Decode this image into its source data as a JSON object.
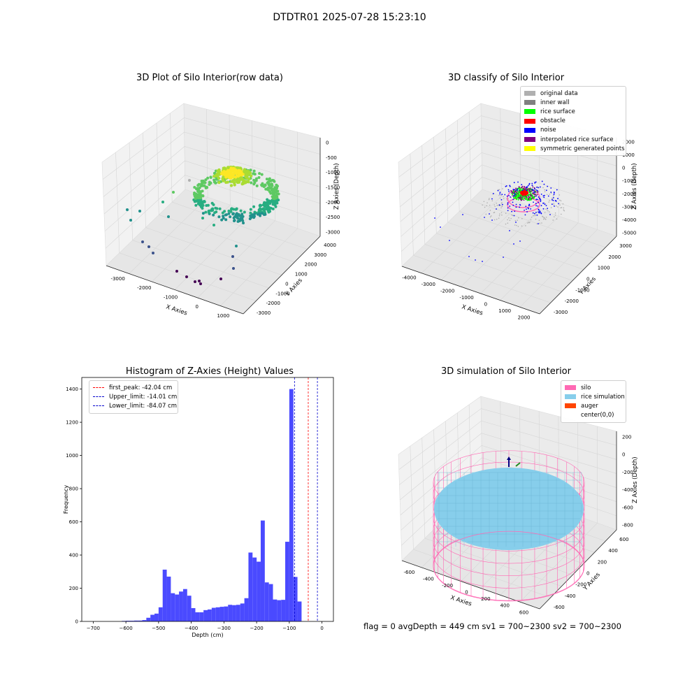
{
  "suptitle": "DTDTR01 2025-07-28 15:23:10",
  "status_text": "flag = 0     avgDepth = 449 cm  sv1 = 700~2300  sv2 = 700~2300",
  "colors": {
    "original": "#b0b0b0",
    "inner_wall": "#808080",
    "rice_surface": "#00ff00",
    "obstacle": "#ff0000",
    "noise": "#0000ff",
    "interpolated": "#800080",
    "symmetric": "#ffff00",
    "hist_bar": "#4a4aff",
    "silo": "#ff69b4",
    "rice_sim": "#87ceeb",
    "auger": "#ff4500"
  },
  "chart_data": [
    {
      "type": "scatter",
      "title": "3D Plot of Silo Interior(row data)",
      "xlabel": "X Axies",
      "ylabel": "Y Axies",
      "zlabel": "Z Axies (Depth)",
      "x_ticks": [
        "-3000",
        "-2000",
        "-1000",
        "0",
        "1000"
      ],
      "y_ticks": [
        "-3000",
        "-2000",
        "-1000",
        "0",
        "1000",
        "2000",
        "3000",
        "4000"
      ],
      "z_ticks": [
        "0",
        "-500",
        "-1000",
        "-1500",
        "-2000",
        "-2500",
        "-3000"
      ],
      "colormap": "viridis"
    },
    {
      "type": "scatter",
      "title": "3D classify of Silo Interior",
      "xlabel": "X Axies",
      "ylabel": "Y Axies",
      "zlabel": "Z Axies (Depth)",
      "x_ticks": [
        "-4000",
        "-3000",
        "-2000",
        "-1000",
        "0",
        "1000",
        "2000"
      ],
      "y_ticks": [
        "-3000",
        "-2000",
        "-1000",
        "0",
        "1000",
        "2000",
        "3000"
      ],
      "z_ticks": [
        "2000",
        "1000",
        "0",
        "-1000",
        "-2000",
        "-3000",
        "-4000",
        "-5000"
      ],
      "legend": [
        {
          "label": "original data",
          "color": "#b0b0b0"
        },
        {
          "label": "inner wall",
          "color": "#808080"
        },
        {
          "label": "rice surface",
          "color": "#00ff00"
        },
        {
          "label": "obstacle",
          "color": "#ff0000"
        },
        {
          "label": "noise",
          "color": "#0000ff"
        },
        {
          "label": "interpolated rice surface",
          "color": "#800080"
        },
        {
          "label": "symmetric generated points",
          "color": "#ffff00"
        }
      ]
    },
    {
      "type": "bar",
      "title": "Histogram of Z-Axies (Height) Values",
      "xlabel": "Depth (cm)",
      "ylabel": "Frequency",
      "xlim": [
        -735,
        35
      ],
      "ylim": [
        0,
        1470
      ],
      "x_ticks": [
        -700,
        -600,
        -500,
        -400,
        -300,
        -200,
        -100,
        0
      ],
      "y_ticks": [
        0,
        200,
        400,
        600,
        800,
        1000,
        1200,
        1400
      ],
      "bin_width": 12.5,
      "bin_starts": [
        -612.5,
        -600,
        -587.5,
        -575,
        -562.5,
        -550,
        -537.5,
        -525,
        -512.5,
        -500,
        -487.5,
        -475,
        -462.5,
        -450,
        -437.5,
        -425,
        -412.5,
        -400,
        -387.5,
        -375,
        -362.5,
        -350,
        -337.5,
        -325,
        -312.5,
        -300,
        -287.5,
        -275,
        -262.5,
        -250,
        -237.5,
        -225,
        -212.5,
        -200,
        -187.5,
        -175,
        -162.5,
        -150,
        -137.5,
        -125,
        -112.5,
        -100,
        -87.5,
        -75,
        -62.5,
        -50,
        -37.5,
        -25,
        -12.5
      ],
      "counts": [
        3,
        4,
        4,
        5,
        5,
        8,
        22,
        40,
        47,
        85,
        312,
        270,
        170,
        162,
        180,
        195,
        155,
        80,
        55,
        55,
        68,
        72,
        82,
        85,
        88,
        90,
        100,
        98,
        100,
        108,
        140,
        415,
        385,
        360,
        608,
        235,
        225,
        132,
        128,
        130,
        480,
        1400,
        268,
        120,
        0,
        0,
        0,
        0,
        0
      ],
      "lines": [
        {
          "label": "first_peak: -42.04 cm",
          "value": -42.04,
          "color": "#ff0000"
        },
        {
          "label": "Upper_limit: -14.01 cm",
          "value": -14.01,
          "color": "#0000cc"
        },
        {
          "label": "Lower_limit: -84.07 cm",
          "value": -84.07,
          "color": "#0000cc"
        }
      ]
    },
    {
      "type": "scatter",
      "title": "3D simulation of Silo Interior",
      "xlabel": "X Axies",
      "ylabel": "Y Axies",
      "zlabel": "Z Axies (Depth)",
      "x_ticks": [
        "-600",
        "-400",
        "-200",
        "0",
        "200",
        "400",
        "600"
      ],
      "y_ticks": [
        "-600",
        "-400",
        "-200",
        "0",
        "200",
        "400",
        "600"
      ],
      "z_ticks": [
        "200",
        "0",
        "-200",
        "-400",
        "-600",
        "-800"
      ],
      "legend": [
        {
          "label": "silo",
          "color": "#ff69b4"
        },
        {
          "label": "rice simulation",
          "color": "#87ceeb"
        },
        {
          "label": "auger",
          "color": "#ff4500"
        },
        {
          "label": "center(0,0)",
          "color": "#ffffff"
        }
      ]
    }
  ]
}
